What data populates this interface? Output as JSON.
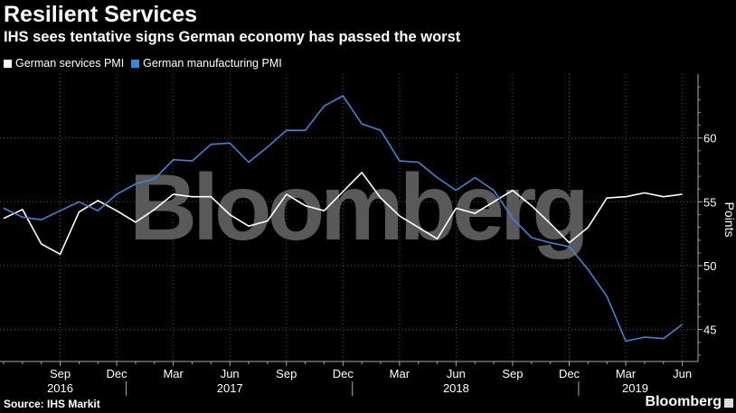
{
  "header": {
    "title": "Resilient Services",
    "subtitle": "IHS sees tentative signs German economy has passed the worst"
  },
  "legend": {
    "items": [
      {
        "label": "German services PMI",
        "color": "#ffffff"
      },
      {
        "label": "German manufacturing PMI",
        "color": "#3a86d8"
      }
    ]
  },
  "watermark": "Bloomberg",
  "footer": {
    "source": "Source: IHS Markit",
    "logo": "Bloomberg"
  },
  "chart_data": {
    "type": "line",
    "title": "Resilient Services",
    "subtitle": "IHS sees tentative signs German economy has passed the worst",
    "ylabel": "Points",
    "ylim": [
      42.5,
      65
    ],
    "yticks": [
      45,
      50,
      55,
      60
    ],
    "y_axis_side": "right",
    "x_tick_labels": [
      "Sep",
      "Dec",
      "Mar",
      "Jun",
      "Sep",
      "Dec",
      "Mar",
      "Jun",
      "Sep",
      "Dec",
      "Mar",
      "Jun"
    ],
    "x_year_labels": [
      "2016",
      "2017",
      "2018",
      "2019"
    ],
    "x": [
      "2016-06",
      "2016-07",
      "2016-08",
      "2016-09",
      "2016-10",
      "2016-11",
      "2016-12",
      "2017-01",
      "2017-02",
      "2017-03",
      "2017-04",
      "2017-05",
      "2017-06",
      "2017-07",
      "2017-08",
      "2017-09",
      "2017-10",
      "2017-11",
      "2017-12",
      "2018-01",
      "2018-02",
      "2018-03",
      "2018-04",
      "2018-05",
      "2018-06",
      "2018-07",
      "2018-08",
      "2018-09",
      "2018-10",
      "2018-11",
      "2018-12",
      "2019-01",
      "2019-02",
      "2019-03",
      "2019-04",
      "2019-05",
      "2019-06"
    ],
    "series": [
      {
        "name": "German services PMI",
        "color": "#ffffff",
        "values": [
          53.7,
          54.4,
          51.7,
          50.9,
          54.2,
          55.1,
          54.3,
          53.4,
          54.4,
          55.6,
          55.4,
          55.4,
          54.0,
          53.1,
          53.5,
          55.6,
          54.7,
          54.3,
          55.8,
          57.3,
          55.3,
          53.9,
          53.0,
          52.1,
          54.5,
          54.1,
          55.0,
          55.9,
          54.7,
          53.3,
          51.8,
          53.0,
          55.3,
          55.4,
          55.7,
          55.4,
          55.6
        ]
      },
      {
        "name": "German manufacturing PMI",
        "color": "#3a86d8",
        "values": [
          54.5,
          53.8,
          53.6,
          54.3,
          55.0,
          54.3,
          55.6,
          56.4,
          56.8,
          58.3,
          58.2,
          59.5,
          59.6,
          58.1,
          59.3,
          60.6,
          60.6,
          62.5,
          63.3,
          61.1,
          60.6,
          58.2,
          58.1,
          56.9,
          55.9,
          56.9,
          55.9,
          53.7,
          52.2,
          51.8,
          51.5,
          49.7,
          47.6,
          44.1,
          44.4,
          44.3,
          45.4
        ]
      }
    ],
    "grid": true,
    "legend_position": "top-left"
  }
}
